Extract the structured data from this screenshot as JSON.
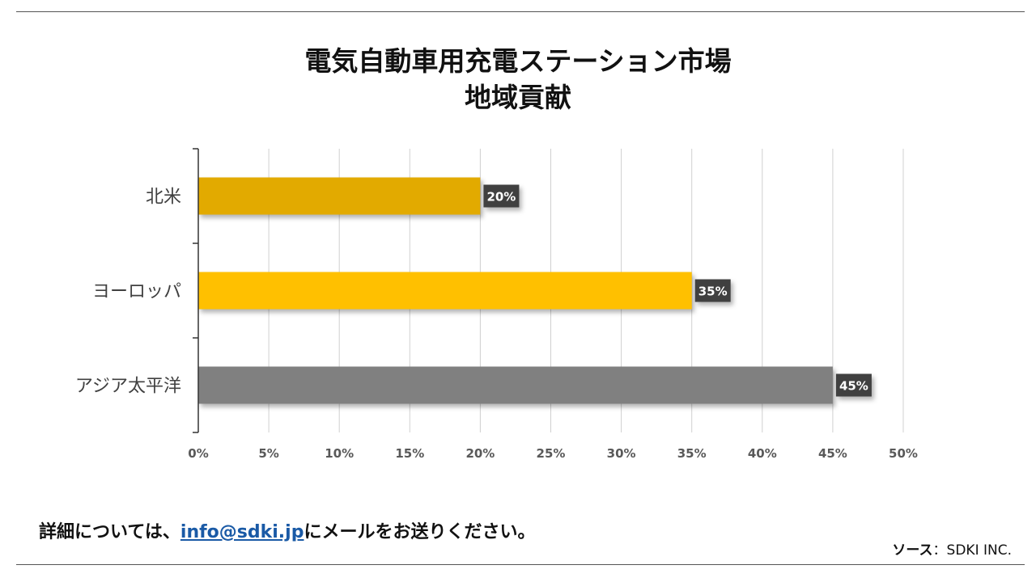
{
  "chart_data": {
    "type": "bar",
    "orientation": "horizontal",
    "title": [
      "電気自動車用充電ステーション市場",
      "地域貢献"
    ],
    "categories": [
      "北米",
      "ヨーロッパ",
      "アジア太平洋"
    ],
    "values": [
      20,
      35,
      45
    ],
    "data_labels": [
      "20%",
      "35%",
      "45%"
    ],
    "bar_colors": [
      "#E2AA00",
      "#FFC000",
      "#808080"
    ],
    "xlim": [
      0,
      50
    ],
    "xticks": [
      0,
      5,
      10,
      15,
      20,
      25,
      30,
      35,
      40,
      45,
      50
    ],
    "xtick_labels": [
      "0%",
      "5%",
      "10%",
      "15%",
      "20%",
      "25%",
      "30%",
      "35%",
      "40%",
      "45%",
      "50%"
    ],
    "xlabel": "",
    "ylabel": "",
    "grid": "vertical"
  },
  "footer": {
    "prefix": "詳細については、",
    "email": "info@sdki.jp",
    "suffix": "にメールをお送りください。"
  },
  "source": {
    "label": "ソース",
    "value": "：SDKI INC."
  }
}
